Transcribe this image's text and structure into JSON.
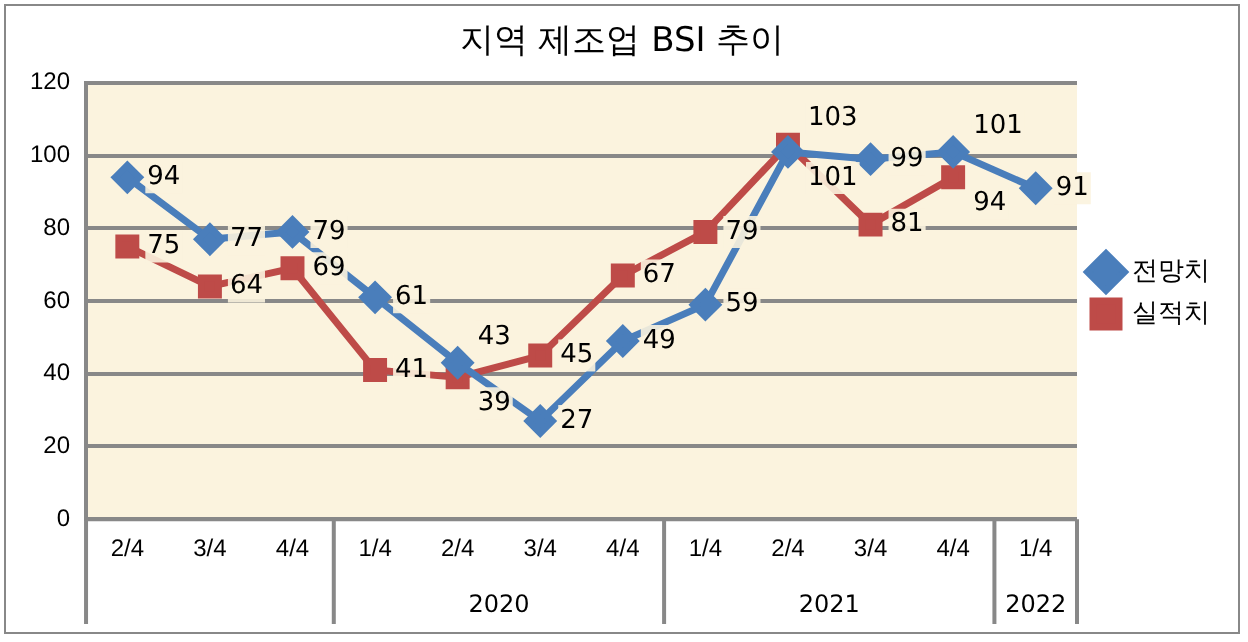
{
  "chart_data": {
    "type": "line",
    "title": "지역 제조업 BSI 추이",
    "categories": [
      "2/4",
      "3/4",
      "4/4",
      "1/4",
      "2/4",
      "3/4",
      "4/4",
      "1/4",
      "2/4",
      "3/4",
      "4/4",
      "1/4"
    ],
    "series": [
      {
        "name": "전망치",
        "color": "#4a7ebb",
        "marker": "diamond",
        "values": [
          94,
          77,
          79,
          61,
          43,
          27,
          49,
          59,
          101,
          99,
          101,
          91
        ]
      },
      {
        "name": "실적치",
        "color": "#be4b48",
        "marker": "square",
        "values": [
          75,
          64,
          69,
          41,
          39,
          45,
          67,
          79,
          103,
          81,
          94,
          null
        ]
      }
    ],
    "ylim": [
      0,
      120
    ],
    "yticks": [
      0,
      20,
      40,
      60,
      80,
      100,
      120
    ],
    "grid": "y",
    "legend": "right",
    "data_labels": true,
    "annotations": [
      "2020",
      "2021",
      "2022"
    ]
  }
}
